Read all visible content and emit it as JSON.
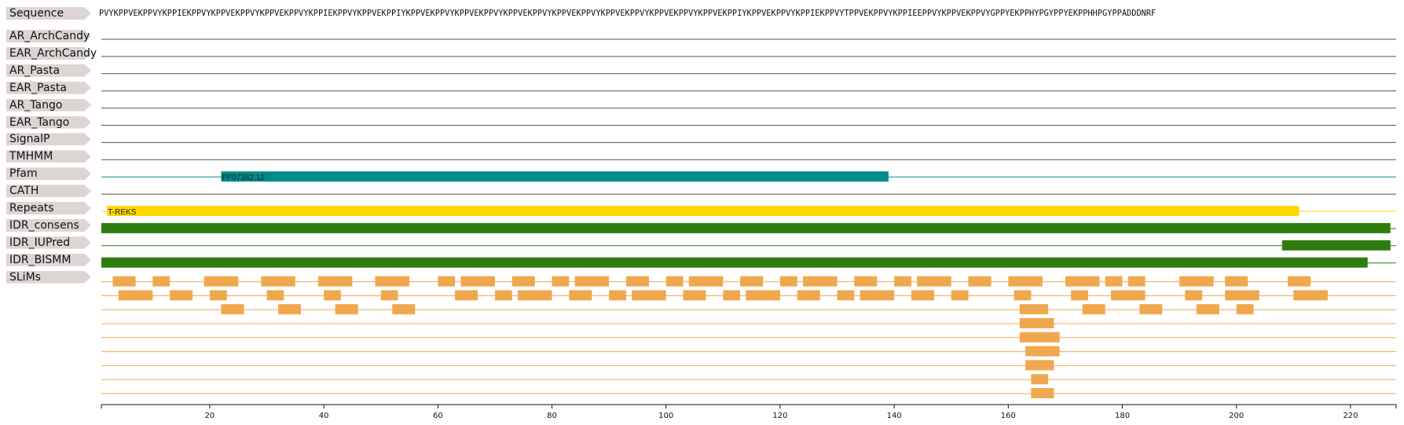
{
  "sequence": "PVYKPPVEKPPVYKPPIEKPPVYKPPVEKPPVYKPPVEKPPVYKPPIEKPPVYKPPVEKPPIYKPPVEKPPVYKPPVEKPPVYKPPVEKPPVYKPPVEKPPVYKPPVEKPPVYKPPVEKPPVYKPPVEKPPIYKPPVEKPPVYKPPIEKPPVYTPPVEKPPVYKPPIEEPPVYKPPVEKPPVYGPPYEKPPHYPGYPPYEKPPHHPGYPPADDDNRF",
  "labels": {
    "sequence": "Sequence",
    "tracks": [
      "AR_ArchCandy",
      "EAR_ArchCandy",
      "AR_Pasta",
      "EAR_Pasta",
      "AR_Tango",
      "EAR_Tango",
      "SignalP",
      "TMHMM",
      "Pfam",
      "CATH",
      "Repeats",
      "IDR_consens",
      "IDR_IUPred",
      "IDR_BISMM",
      "SLiMs"
    ]
  },
  "colors": {
    "pfam": "#008b8b",
    "repeats": "#ffd700",
    "idr": "#2e7d0e",
    "slims": "#f0a84e",
    "line": "#555555"
  },
  "axis": {
    "min": 1,
    "max": 228,
    "ticks": [
      20,
      40,
      60,
      80,
      100,
      120,
      140,
      160,
      180,
      200,
      220
    ]
  },
  "features": {
    "pfam": [
      {
        "start": 22,
        "end": 139,
        "label": "PF07382.12"
      }
    ],
    "repeats": [
      {
        "start": 2,
        "end": 211,
        "label": "T-REKS"
      }
    ],
    "idr_consens": [
      {
        "start": 1,
        "end": 227
      }
    ],
    "idr_iupred": [
      {
        "start": 208,
        "end": 227
      }
    ],
    "idr_bismm": [
      {
        "start": 1,
        "end": 223
      }
    ]
  },
  "slims": [
    [
      [
        3,
        7
      ],
      [
        10,
        13
      ],
      [
        19,
        25
      ],
      [
        29,
        35
      ],
      [
        39,
        45
      ],
      [
        49,
        55
      ],
      [
        60,
        63
      ],
      [
        64,
        70
      ],
      [
        73,
        77
      ],
      [
        80,
        83
      ],
      [
        84,
        90
      ],
      [
        93,
        97
      ],
      [
        100,
        103
      ],
      [
        104,
        110
      ],
      [
        113,
        117
      ],
      [
        120,
        123
      ],
      [
        124,
        130
      ],
      [
        133,
        137
      ],
      [
        140,
        143
      ],
      [
        144,
        150
      ],
      [
        153,
        157
      ],
      [
        160,
        166
      ],
      [
        170,
        176
      ],
      [
        177,
        180
      ],
      [
        181,
        184
      ],
      [
        190,
        196
      ],
      [
        198,
        202
      ],
      [
        209,
        213
      ]
    ],
    [
      [
        4,
        10
      ],
      [
        13,
        17
      ],
      [
        20,
        23
      ],
      [
        30,
        33
      ],
      [
        40,
        43
      ],
      [
        50,
        53
      ],
      [
        63,
        67
      ],
      [
        70,
        73
      ],
      [
        74,
        80
      ],
      [
        83,
        87
      ],
      [
        90,
        93
      ],
      [
        94,
        100
      ],
      [
        103,
        107
      ],
      [
        110,
        113
      ],
      [
        114,
        120
      ],
      [
        123,
        127
      ],
      [
        130,
        133
      ],
      [
        134,
        140
      ],
      [
        143,
        147
      ],
      [
        150,
        153
      ],
      [
        161,
        164
      ],
      [
        171,
        174
      ],
      [
        178,
        184
      ],
      [
        191,
        194
      ],
      [
        198,
        204
      ],
      [
        210,
        216
      ]
    ],
    [
      [
        22,
        26
      ],
      [
        32,
        36
      ],
      [
        42,
        46
      ],
      [
        52,
        56
      ],
      [
        162,
        167
      ],
      [
        173,
        177
      ],
      [
        183,
        187
      ],
      [
        193,
        197
      ],
      [
        200,
        203
      ]
    ],
    [
      [
        162,
        168
      ]
    ],
    [
      [
        162,
        169
      ]
    ],
    [
      [
        163,
        169
      ]
    ],
    [
      [
        163,
        168
      ]
    ],
    [
      [
        164,
        167
      ]
    ],
    [
      [
        164,
        168
      ]
    ]
  ]
}
